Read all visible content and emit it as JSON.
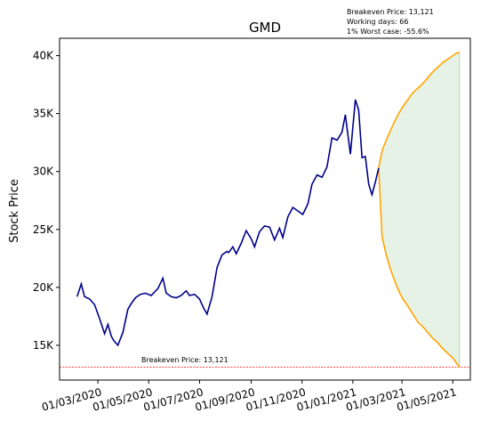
{
  "info": {
    "breakeven": "Breakeven Price: 13,121",
    "working_days": "Working days: 66",
    "worst_case": "1% Worst case: -55.6%"
  },
  "chart_data": {
    "type": "line",
    "title": "GMD",
    "xlabel": "",
    "ylabel": "Stock Price",
    "ylim": [
      12000,
      41500
    ],
    "grid": false,
    "y_ticks": [
      {
        "value": 15000,
        "label": "15K"
      },
      {
        "value": 20000,
        "label": "20K"
      },
      {
        "value": 25000,
        "label": "25K"
      },
      {
        "value": 30000,
        "label": "30K"
      },
      {
        "value": 35000,
        "label": "35K"
      },
      {
        "value": 40000,
        "label": "40K"
      }
    ],
    "x_ticks": [
      "01/03/2020",
      "01/05/2020",
      "01/07/2020",
      "01/09/2020",
      "01/11/2020",
      "01/01/2021",
      "01/03/2021",
      "01/05/2021"
    ],
    "breakeven": {
      "value": 13121,
      "label": "Breakeven Price: 13,121",
      "color": "#ff0000"
    },
    "colors": {
      "history": "#00008b",
      "projection": "#ffa500",
      "band": "#e5f2e5"
    },
    "series": [
      {
        "role": "history",
        "x": [
          "2020-02-05",
          "2020-02-10",
          "2020-02-14",
          "2020-02-20",
          "2020-02-26",
          "2020-03-03",
          "2020-03-09",
          "2020-03-13",
          "2020-03-17",
          "2020-03-20",
          "2020-03-25",
          "2020-03-31",
          "2020-04-06",
          "2020-04-10",
          "2020-04-15",
          "2020-04-21",
          "2020-04-27",
          "2020-05-04",
          "2020-05-12",
          "2020-05-18",
          "2020-05-22",
          "2020-05-28",
          "2020-06-03",
          "2020-06-09",
          "2020-06-15",
          "2020-06-19",
          "2020-06-25",
          "2020-07-01",
          "2020-07-06",
          "2020-07-10",
          "2020-07-16",
          "2020-07-22",
          "2020-07-28",
          "2020-08-03",
          "2020-08-05",
          "2020-08-10",
          "2020-08-14",
          "2020-08-20",
          "2020-08-26",
          "2020-09-01",
          "2020-09-05",
          "2020-09-11",
          "2020-09-17",
          "2020-09-23",
          "2020-09-29",
          "2020-10-05",
          "2020-10-09",
          "2020-10-15",
          "2020-10-21",
          "2020-10-27",
          "2020-11-02",
          "2020-11-08",
          "2020-11-13",
          "2020-11-19",
          "2020-11-25",
          "2020-12-01",
          "2020-12-07",
          "2020-12-13",
          "2020-12-19",
          "2020-12-23",
          "2020-12-29",
          "2021-01-04",
          "2021-01-08",
          "2021-01-12",
          "2021-01-16",
          "2021-01-20",
          "2021-01-24",
          "2021-01-28",
          "2021-02-01"
        ],
        "values": [
          19200,
          20300,
          19200,
          19000,
          18500,
          17300,
          16000,
          16800,
          15800,
          15400,
          15000,
          16100,
          18100,
          18600,
          19100,
          19400,
          19500,
          19300,
          19900,
          20800,
          19500,
          19200,
          19100,
          19300,
          19700,
          19300,
          19400,
          19000,
          18200,
          17700,
          19200,
          21700,
          22800,
          23100,
          23000,
          23500,
          22900,
          23800,
          24900,
          24200,
          23500,
          24800,
          25300,
          25200,
          24100,
          25100,
          24300,
          26100,
          26900,
          26600,
          26300,
          27200,
          28900,
          29700,
          29500,
          30400,
          32900,
          32700,
          33400,
          34900,
          31500,
          36200,
          35300,
          31200,
          31300,
          28900,
          28000,
          29100,
          30300
        ]
      },
      {
        "role": "projection-upper",
        "x": [
          "2021-02-01",
          "2021-02-05",
          "2021-02-10",
          "2021-02-15",
          "2021-02-20",
          "2021-02-25",
          "2021-03-02",
          "2021-03-08",
          "2021-03-14",
          "2021-03-20",
          "2021-03-26",
          "2021-04-01",
          "2021-04-07",
          "2021-04-13",
          "2021-04-19",
          "2021-04-25",
          "2021-05-01",
          "2021-05-05",
          "2021-05-09"
        ],
        "values": [
          30300,
          31800,
          32700,
          33500,
          34300,
          35000,
          35600,
          36200,
          36800,
          37200,
          37600,
          38100,
          38600,
          39000,
          39400,
          39700,
          40000,
          40200,
          40300
        ]
      },
      {
        "role": "projection-lower",
        "x": [
          "2021-02-01",
          "2021-02-05",
          "2021-02-10",
          "2021-02-15",
          "2021-02-20",
          "2021-02-25",
          "2021-03-02",
          "2021-03-08",
          "2021-03-14",
          "2021-03-20",
          "2021-03-26",
          "2021-04-01",
          "2021-04-07",
          "2021-04-13",
          "2021-04-19",
          "2021-04-25",
          "2021-05-01",
          "2021-05-05",
          "2021-05-09"
        ],
        "values": [
          30300,
          24400,
          22800,
          21600,
          20600,
          19700,
          19000,
          18400,
          17700,
          17000,
          16600,
          16100,
          15600,
          15200,
          14700,
          14300,
          13900,
          13500,
          13100
        ]
      }
    ]
  }
}
